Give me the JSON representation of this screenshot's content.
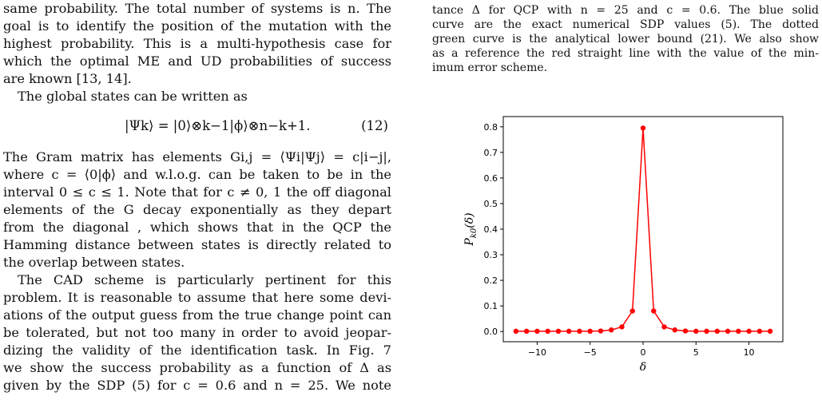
{
  "left_column": {
    "lines": [
      "same probability. The total number of systems is n. The",
      "goal is to identify the position of the mutation with the",
      "highest probability. This is a multi-hypothesis case for",
      "which the optimal ME and UD probabilities of success",
      "are known [13, 14].",
      "The global states can be written as"
    ],
    "equation": "|Ψk⟩ = |0⟩⊗k−1|ϕ⟩⊗n−k+1.",
    "equation_number": "(12)",
    "lines2": [
      "The Gram matrix has elements Gi,j = ⟨Ψi|Ψj⟩ = c|i−j|,",
      "where c = ⟨0|ϕ⟩ and w.l.o.g. can be taken to be in the",
      "interval 0 ≤ c ≤ 1. Note that for c ≠ 0, 1 the off diagonal",
      "elements of the G decay exponentially as they depart",
      "from the diagonal , which shows that in the QCP the",
      "Hamming distance between states is directly related to",
      "the overlap between states.",
      "The CAD scheme is particularly pertinent for this",
      "problem. It is reasonable to assume that here some devi-",
      "ations of the output guess from the true change point can",
      "be tolerated, but not too many in order to avoid jeopar-",
      "dizing the validity of the identification task. In Fig. 7",
      "we show the success probability as a function of Δ as",
      "given by the SDP (5) for c = 0.6 and n = 25. We note"
    ]
  },
  "caption": {
    "lines": [
      "tance Δ for QCP with n = 25 and c = 0.6. The blue solid",
      "curve are the exact numerical SDP values (5). The dotted",
      "green curve is the analytical lower bound (21). We also show",
      "as a reference the red straight line with the value of the min-",
      "imum error scheme."
    ]
  },
  "chart_data": {
    "type": "line",
    "x": [
      -12,
      -11,
      -10,
      -9,
      -8,
      -7,
      -6,
      -5,
      -4,
      -3,
      -2,
      -1,
      0,
      1,
      2,
      3,
      4,
      5,
      6,
      7,
      8,
      9,
      10,
      11,
      12
    ],
    "series": [
      {
        "values": [
          0.001,
          0.001,
          0.001,
          0.001,
          0.001,
          0.001,
          0.001,
          0.001,
          0.002,
          0.006,
          0.018,
          0.08,
          0.795,
          0.08,
          0.018,
          0.006,
          0.002,
          0.001,
          0.001,
          0.001,
          0.001,
          0.001,
          0.001,
          0.001,
          0.001
        ]
      }
    ],
    "xlabel": "δ",
    "ylabel": "Pk0(δ)",
    "xlim": [
      -13.2,
      13.2
    ],
    "ylim": [
      -0.04,
      0.84
    ],
    "x_ticks": [
      -10,
      -5,
      0,
      5,
      10
    ],
    "x_tick_labels": [
      "−10",
      "−5",
      "0",
      "5",
      "10"
    ],
    "y_ticks": [
      0.0,
      0.1,
      0.2,
      0.3,
      0.4,
      0.5,
      0.6,
      0.7,
      0.8
    ],
    "y_tick_labels": [
      "0.0",
      "0.1",
      "0.2",
      "0.3",
      "0.4",
      "0.5",
      "0.6",
      "0.7",
      "0.8"
    ],
    "color": "#ff0000",
    "grid": false
  }
}
